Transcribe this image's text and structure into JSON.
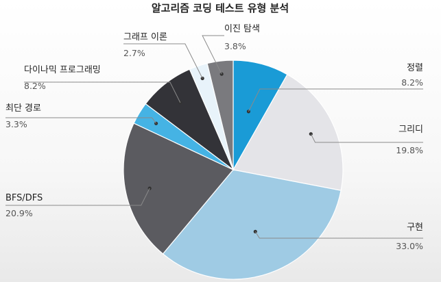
{
  "chart_data": {
    "type": "pie",
    "title": "알고리즘 코딩 테스트 유형 분석",
    "slices": [
      {
        "label": "정렬",
        "value": 8.2,
        "value_text": "8.2%",
        "color": "#1a9bd6"
      },
      {
        "label": "그리디",
        "value": 19.8,
        "value_text": "19.8%",
        "color": "#e4e4e8"
      },
      {
        "label": "구현",
        "value": 33.0,
        "value_text": "33.0%",
        "color": "#9fcbe4"
      },
      {
        "label": "BFS/DFS",
        "value": 20.9,
        "value_text": "20.9%",
        "color": "#5b5b60"
      },
      {
        "label": "최단 경로",
        "value": 3.3,
        "value_text": "3.3%",
        "color": "#45b3e4"
      },
      {
        "label": "다이나믹 프로그래밍",
        "value": 8.2,
        "value_text": "8.2%",
        "color": "#333338"
      },
      {
        "label": "그래프 이론",
        "value": 2.7,
        "value_text": "2.7%",
        "color": "#e8f3fa"
      },
      {
        "label": "이진 탐색",
        "value": 3.8,
        "value_text": "3.8%",
        "color": "#7a7a7e"
      }
    ]
  }
}
